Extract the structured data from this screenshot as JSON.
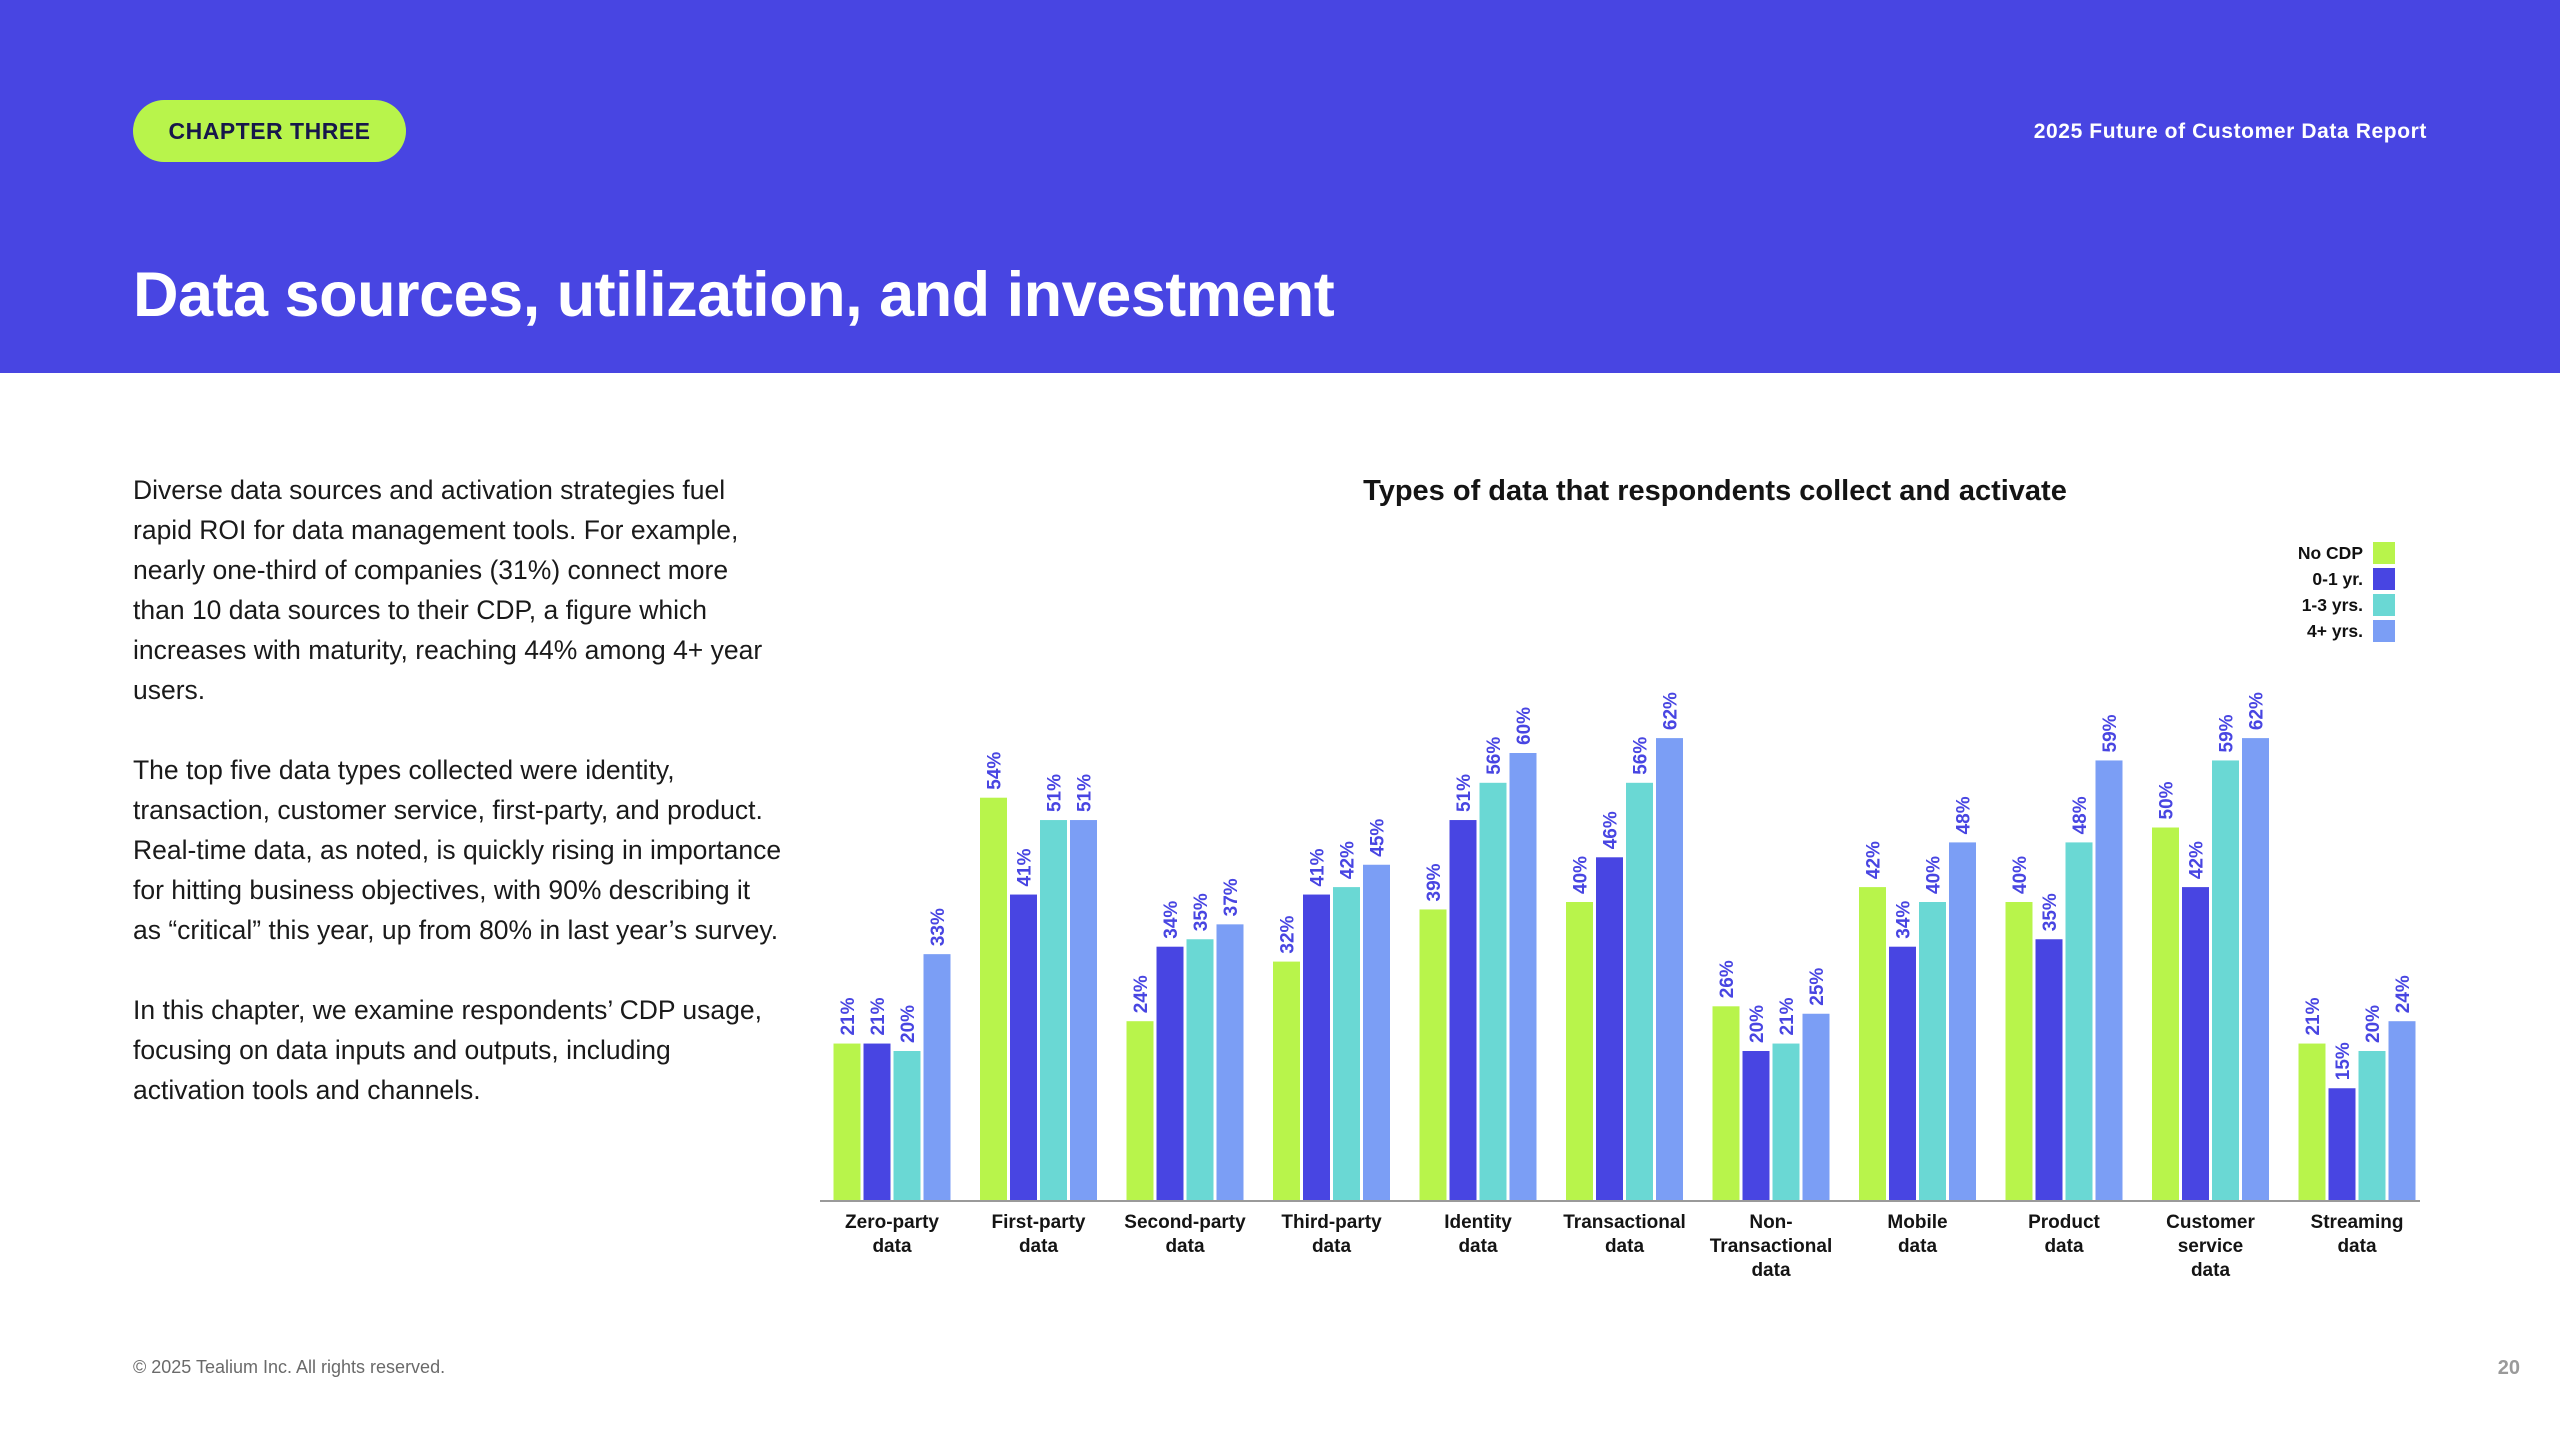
{
  "header": {
    "chapter": "CHAPTER THREE",
    "report_title": "2025 Future of Customer Data Report",
    "page_title": "Data sources, utilization, and investment"
  },
  "body": {
    "paragraphs": [
      "Diverse data sources and activation strategies fuel rapid ROI for data management tools. For example, nearly one-third of companies (31%) connect more than 10 data sources to their CDP, a figure which increases with maturity, reaching 44% among 4+ year users.",
      "The top five data types collected were identity, transaction, customer service, first-party, and product. Real-time data, as noted, is quickly rising in importance for hitting business objectives, with 90% describing it as “critical” this year, up from 80% in last year’s survey.",
      "In this chapter, we examine respondents’ CDP usage, focusing on data inputs and outputs, including activation tools and channels."
    ]
  },
  "chart_data": {
    "type": "bar",
    "title": "Types of data that respondents collect and activate",
    "categories": [
      "Zero-party data",
      "First-party data",
      "Second-party data",
      "Third-party data",
      "Identity data",
      "Transactional data",
      "Non-Transactional data",
      "Mobile data",
      "Product data",
      "Customer service data",
      "Streaming data"
    ],
    "category_lines": [
      [
        "Zero-party",
        "data"
      ],
      [
        "First-party",
        "data"
      ],
      [
        "Second-party",
        "data"
      ],
      [
        "Third-party",
        "data"
      ],
      [
        "Identity",
        "data"
      ],
      [
        "Transactional",
        "data"
      ],
      [
        "Non-",
        "Transactional",
        "data"
      ],
      [
        "Mobile",
        "data"
      ],
      [
        "Product",
        "data"
      ],
      [
        "Customer",
        "service",
        "data"
      ],
      [
        "Streaming",
        "data"
      ]
    ],
    "series": [
      {
        "name": "No CDP",
        "color": "#b8f44b",
        "values": [
          21,
          54,
          24,
          32,
          39,
          40,
          26,
          42,
          40,
          50,
          21
        ]
      },
      {
        "name": "0-1 yr.",
        "color": "#4845e2",
        "values": [
          21,
          41,
          34,
          41,
          51,
          46,
          20,
          34,
          35,
          42,
          15
        ]
      },
      {
        "name": "1-3 yrs.",
        "color": "#6ad8d4",
        "values": [
          20,
          51,
          35,
          42,
          56,
          56,
          21,
          40,
          48,
          59,
          20
        ]
      },
      {
        "name": "4+ yrs.",
        "color": "#7b9ef5",
        "values": [
          33,
          51,
          37,
          45,
          60,
          62,
          25,
          48,
          59,
          62,
          24
        ]
      }
    ],
    "value_suffix": "%",
    "legend_position": "top-right",
    "grid": false
  },
  "footer": {
    "copyright": "© 2025 Tealium Inc. All rights reserved.",
    "page_number": "20"
  }
}
